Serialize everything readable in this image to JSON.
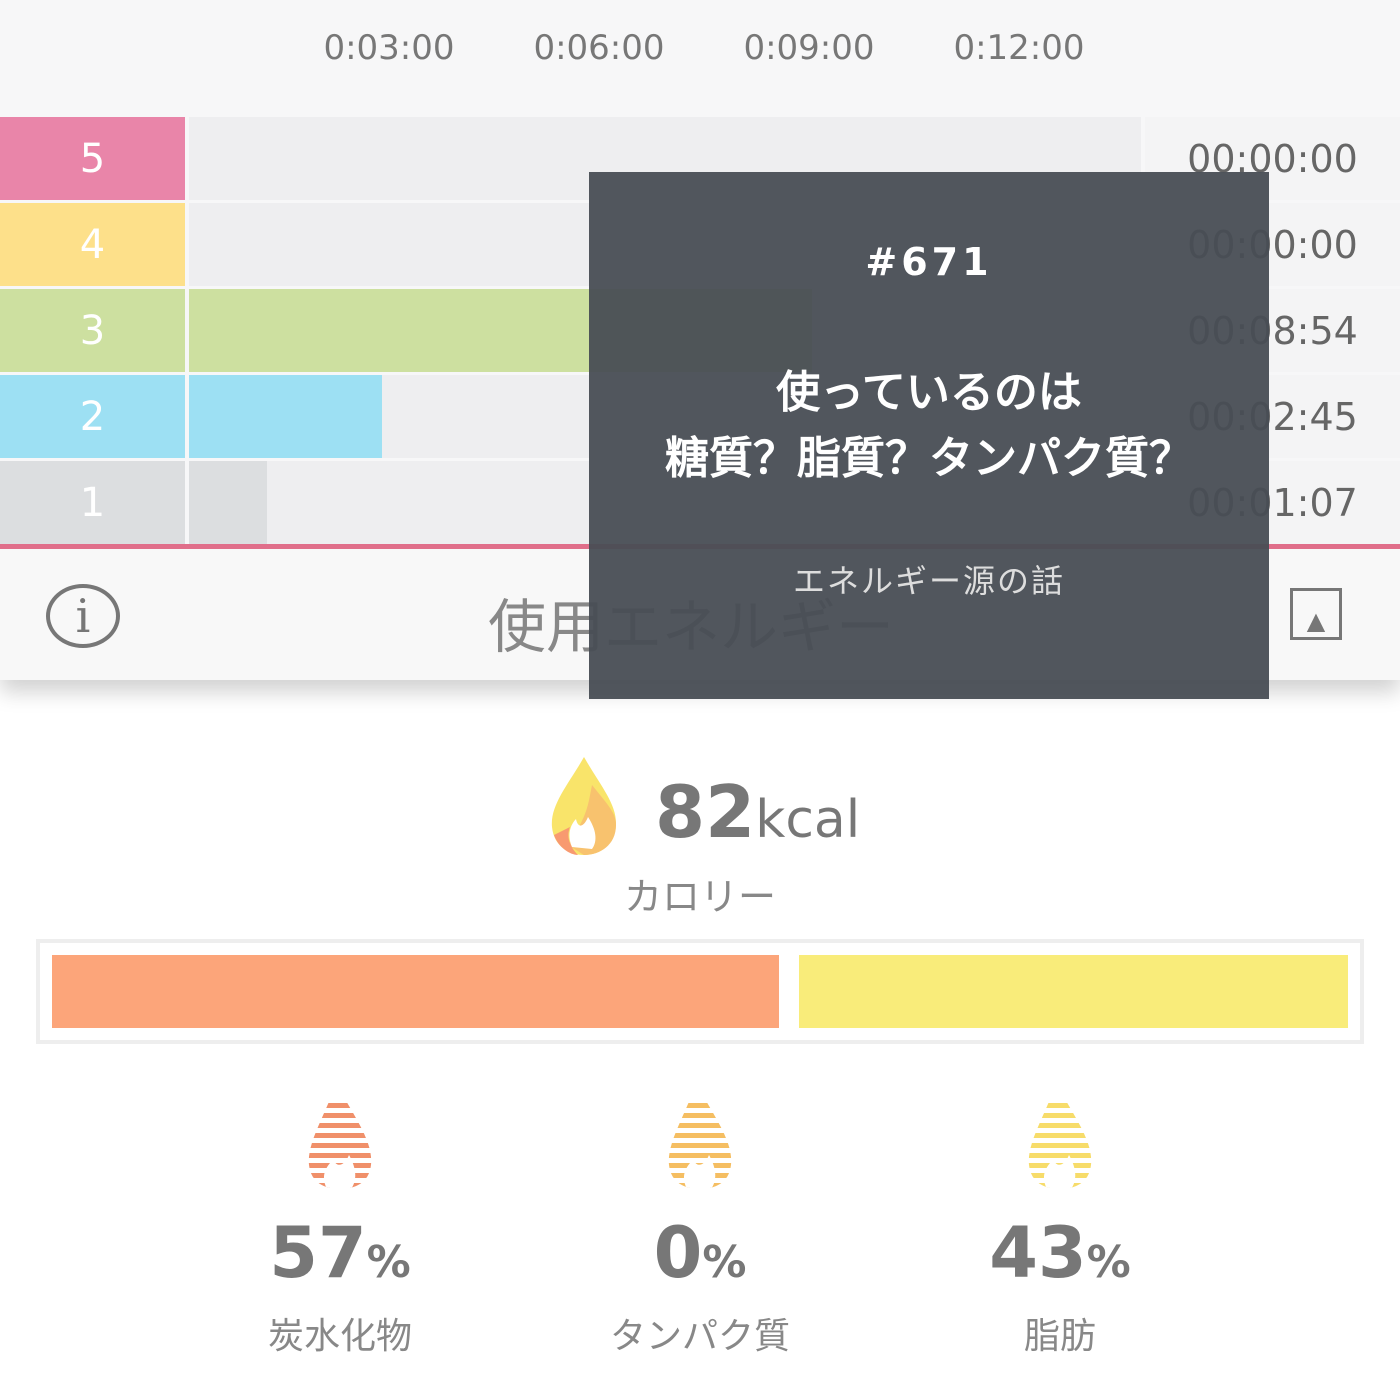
{
  "axis": {
    "ticks": [
      "0:03:00",
      "0:06:00",
      "0:09:00",
      "0:12:00"
    ],
    "tick_minutes": [
      3,
      6,
      9,
      12
    ],
    "max_minutes": 13.6
  },
  "zones": [
    {
      "zone": "5",
      "time": "00:00:00",
      "minutes": 0,
      "color": "#e985a9"
    },
    {
      "zone": "4",
      "time": "00:00:00",
      "minutes": 0,
      "color": "#fde08a"
    },
    {
      "zone": "3",
      "time": "00:08:54",
      "minutes": 8.9,
      "color": "#cde0a0"
    },
    {
      "zone": "2",
      "time": "00:02:45",
      "minutes": 2.75,
      "color": "#9de0f3"
    },
    {
      "zone": "1",
      "time": "00:01:07",
      "minutes": 1.117,
      "color": "#dcdee0"
    }
  ],
  "footer": {
    "title": "使用エネルギー",
    "info_icon": "info-icon",
    "share_icon": "share-icon"
  },
  "overlay": {
    "number": "#671",
    "title_line1": "使っているのは",
    "title_line2": "糖質？脂質？タンパク質？",
    "subtitle": "エネルギー源の話"
  },
  "calories": {
    "value": "82",
    "unit": "kcal",
    "label": "カロリー"
  },
  "energy_bar": {
    "carb_percent": 57,
    "protein_percent": 0,
    "fat_percent": 43,
    "carb_color": "#fca57a",
    "fat_color": "#f9ec7a"
  },
  "stats": [
    {
      "value": "57",
      "unit": "%",
      "label": "炭水化物",
      "color": "#f0906a"
    },
    {
      "value": "0",
      "unit": "%",
      "label": "タンパク質",
      "color": "#f5be62"
    },
    {
      "value": "43",
      "unit": "%",
      "label": "脂肪",
      "color": "#f7dc6a"
    }
  ]
}
